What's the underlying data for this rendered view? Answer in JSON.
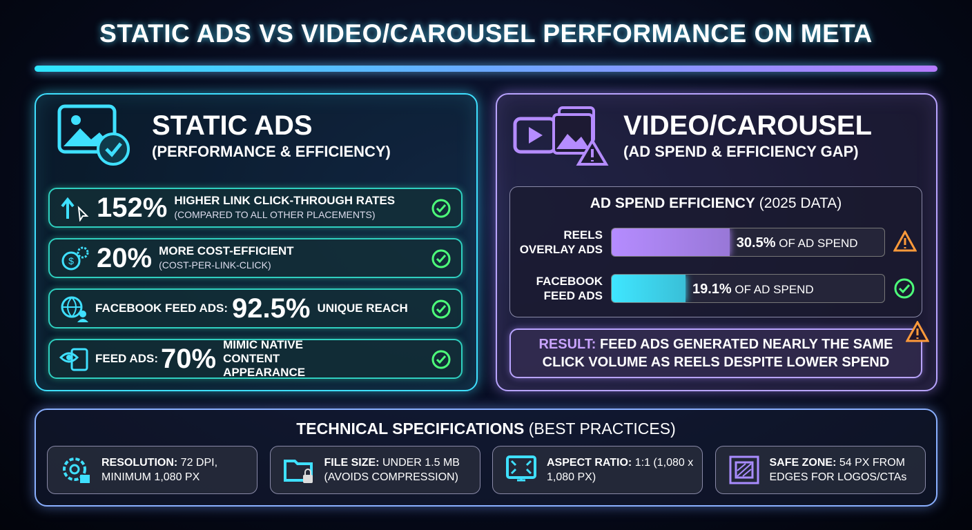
{
  "title": "STATIC ADS VS VIDEO/CAROUSEL PERFORMANCE ON META",
  "static": {
    "heading": "STATIC ADS",
    "subheading": "(PERFORMANCE & EFFICIENCY)",
    "items": [
      {
        "figure": "152%",
        "text": "HIGHER LINK CLICK-THROUGH RATES",
        "note": "(COMPARED TO ALL OTHER PLACEMENTS)"
      },
      {
        "figure": "20%",
        "text": "MORE COST-EFFICIENT",
        "note": "(COST-PER-LINK-CLICK)"
      },
      {
        "prefix": "FACEBOOK FEED ADS:",
        "figure": "92.5%",
        "text": "UNIQUE REACH"
      },
      {
        "prefix": "FEED ADS:",
        "figure": "70%",
        "text": "MIMIC NATIVE CONTENT APPEARANCE"
      }
    ]
  },
  "video": {
    "heading": "VIDEO/CAROUSEL",
    "subheading": "(AD SPEND & EFFICIENCY GAP)",
    "panel_title": "AD SPEND EFFICIENCY",
    "panel_note": "(2025 DATA)",
    "rows": [
      {
        "label": "REELS OVERLAY ADS",
        "value": 30.5,
        "value_label": "30.5%",
        "suffix": "OF AD SPEND",
        "color": "#b58cff"
      },
      {
        "label": "FACEBOOK FEED ADS",
        "value": 19.1,
        "value_label": "19.1%",
        "suffix": "OF AD SPEND",
        "color": "#3fe6ff"
      }
    ],
    "result_label": "RESULT:",
    "result_text": "FEED ADS GENERATED NEARLY THE SAME CLICK VOLUME AS REELS DESPITE LOWER SPEND"
  },
  "specs": {
    "title": "TECHNICAL SPECIFICATIONS",
    "note": "(BEST PRACTICES)",
    "items": [
      {
        "label": "RESOLUTION:",
        "text": "72 DPI, MINIMUM 1,080 PX"
      },
      {
        "label": "FILE SIZE:",
        "text": "UNDER 1.5 MB (AVOIDS COMPRESSION)"
      },
      {
        "label": "ASPECT RATIO:",
        "text": "1:1 (1,080 x 1,080 PX)"
      },
      {
        "label": "SAFE ZONE:",
        "text": "54 PX FROM EDGES FOR LOGOS/CTAs"
      }
    ]
  }
}
